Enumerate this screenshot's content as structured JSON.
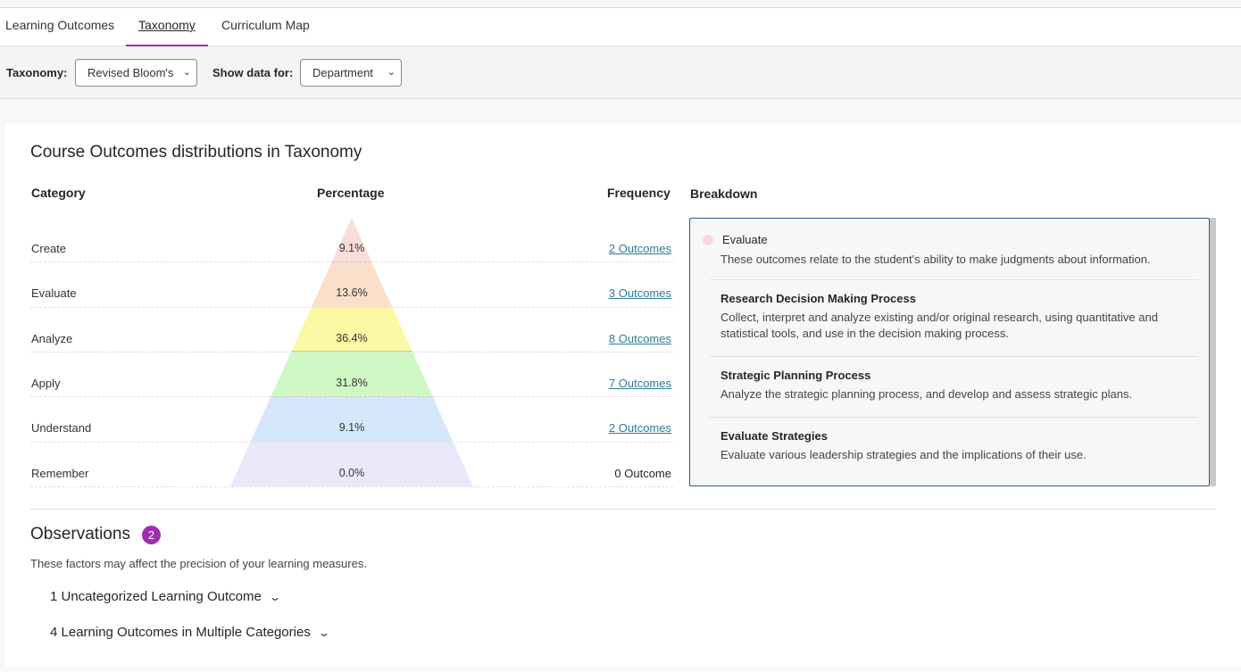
{
  "tabs": [
    {
      "label": "Learning Outcomes"
    },
    {
      "label": "Taxonomy",
      "active": true
    },
    {
      "label": "Curriculum Map"
    }
  ],
  "filters": {
    "taxonomy_label": "Taxonomy:",
    "taxonomy_value": "Revised Bloom's",
    "show_label": "Show data for:",
    "show_value": "Department"
  },
  "section_title": "Course Outcomes distributions in Taxonomy",
  "columns": {
    "category": "Category",
    "percentage": "Percentage",
    "frequency": "Frequency",
    "breakdown": "Breakdown"
  },
  "rows": [
    {
      "category": "Create",
      "percentage": "9.1%",
      "frequency": "2 Outcomes",
      "color": "#f9ddd9"
    },
    {
      "category": "Evaluate",
      "percentage": "13.6%",
      "frequency": "3 Outcomes",
      "color": "#fbe0cc"
    },
    {
      "category": "Analyze",
      "percentage": "36.4%",
      "frequency": "8 Outcomes",
      "color": "#fcf8a4"
    },
    {
      "category": "Apply",
      "percentage": "31.8%",
      "frequency": "7 Outcomes",
      "color": "#cff8c5"
    },
    {
      "category": "Understand",
      "percentage": "9.1%",
      "frequency": "2 Outcomes",
      "color": "#d5e7fb"
    },
    {
      "category": "Remember",
      "percentage": "0.0%",
      "frequency": "0 Outcome",
      "color": "#e8e8fa"
    }
  ],
  "breakdown": {
    "selected_title": "Evaluate",
    "selected_desc": "These outcomes relate to the student's ability to make judgments about information.",
    "items": [
      {
        "title": "Research Decision Making Process",
        "desc": "Collect, interpret and analyze existing and/or original research, using quantitative and statistical tools, and use in the decision making process."
      },
      {
        "title": "Strategic Planning Process",
        "desc": "Analyze the strategic planning process, and develop and assess strategic plans."
      },
      {
        "title": "Evaluate Strategies",
        "desc": "Evaluate various leadership strategies and the implications of their use."
      }
    ]
  },
  "observations": {
    "title": "Observations",
    "count": "2",
    "desc": "These factors may affect the precision of your learning measures.",
    "items": [
      {
        "label": "1 Uncategorized Learning Outcome"
      },
      {
        "label": "4 Learning Outcomes in Multiple Categories"
      }
    ]
  },
  "colors": {
    "accent": "#9c2fae",
    "link": "#2f7d96",
    "panel_border": "#2a5a8a"
  }
}
